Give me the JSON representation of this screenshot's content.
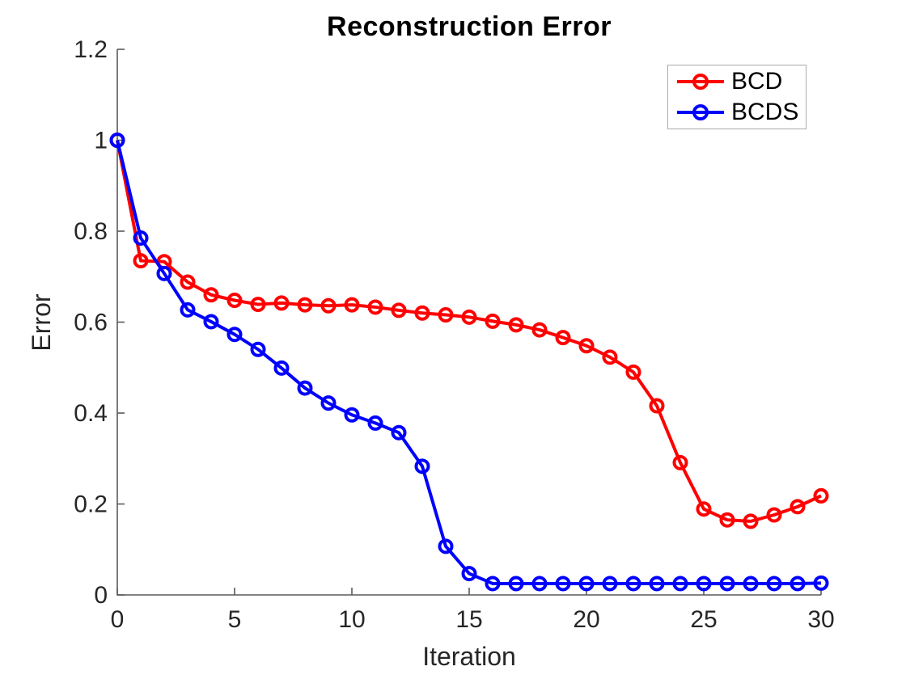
{
  "title": "Reconstruction Error",
  "chart_data": {
    "type": "line",
    "title": "Reconstruction Error",
    "xlabel": "Iteration",
    "ylabel": "Error",
    "xlim": [
      0,
      30
    ],
    "ylim": [
      0,
      1.2
    ],
    "xticks": [
      0,
      5,
      10,
      15,
      20,
      25,
      30
    ],
    "xticklabels": [
      "0",
      "5",
      "10",
      "15",
      "20",
      "25",
      "30"
    ],
    "yticks": [
      0,
      0.2,
      0.4,
      0.6,
      0.8,
      1,
      1.2
    ],
    "yticklabels": [
      "0",
      "0.2",
      "0.4",
      "0.6",
      "0.8",
      "1",
      "1.2"
    ],
    "grid": false,
    "legend_position": "top-right",
    "marker": "circle",
    "x": [
      0,
      1,
      2,
      3,
      4,
      5,
      6,
      7,
      8,
      9,
      10,
      11,
      12,
      13,
      14,
      15,
      16,
      17,
      18,
      19,
      20,
      21,
      22,
      23,
      24,
      25,
      26,
      27,
      28,
      29,
      30
    ],
    "series": [
      {
        "name": "BCD",
        "color": "#ff0000",
        "values": [
          1.0,
          0.735,
          0.733,
          0.688,
          0.66,
          0.648,
          0.639,
          0.642,
          0.638,
          0.636,
          0.638,
          0.633,
          0.626,
          0.62,
          0.616,
          0.611,
          0.602,
          0.594,
          0.583,
          0.566,
          0.548,
          0.523,
          0.49,
          0.416,
          0.291,
          0.189,
          0.165,
          0.162,
          0.176,
          0.194,
          0.218
        ]
      },
      {
        "name": "BCDS",
        "color": "#0000ff",
        "values": [
          1.0,
          0.785,
          0.707,
          0.627,
          0.601,
          0.573,
          0.54,
          0.499,
          0.455,
          0.422,
          0.396,
          0.378,
          0.357,
          0.283,
          0.107,
          0.047,
          0.025,
          0.025,
          0.025,
          0.025,
          0.025,
          0.025,
          0.025,
          0.025,
          0.025,
          0.025,
          0.025,
          0.025,
          0.025,
          0.025,
          0.026
        ]
      }
    ]
  },
  "style": {
    "axis_color": "#5a5a5a",
    "tick_label_color": "#262626",
    "legend_border_color": "#ababab",
    "background": "#ffffff"
  }
}
